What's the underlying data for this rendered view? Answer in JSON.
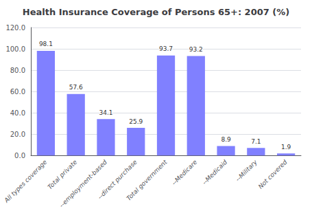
{
  "chart_data": {
    "type": "bar",
    "title": "Health Insurance Coverage of Persons 65+: 2007 (%)",
    "categories": [
      "All types coverage",
      "Total private",
      "--employment-based",
      "--direct purchase",
      "Total government",
      "--Medicare",
      "--Medicaid",
      "--Military",
      "Not covered"
    ],
    "values": [
      98.1,
      57.6,
      34.1,
      25.9,
      93.7,
      93.2,
      8.9,
      7.1,
      1.9
    ],
    "color": "#8080ff",
    "ylim": [
      0,
      120
    ],
    "yticks": [
      {
        "value": 0,
        "label": "0.0"
      },
      {
        "value": 20,
        "label": "20.0"
      },
      {
        "value": 40,
        "label": "40.0"
      },
      {
        "value": 60,
        "label": "60.0"
      },
      {
        "value": 80,
        "label": "80.0"
      },
      {
        "value": 100,
        "label": "100.0"
      },
      {
        "value": 120,
        "label": "120.0"
      }
    ],
    "grid": true,
    "data_labels": true
  }
}
